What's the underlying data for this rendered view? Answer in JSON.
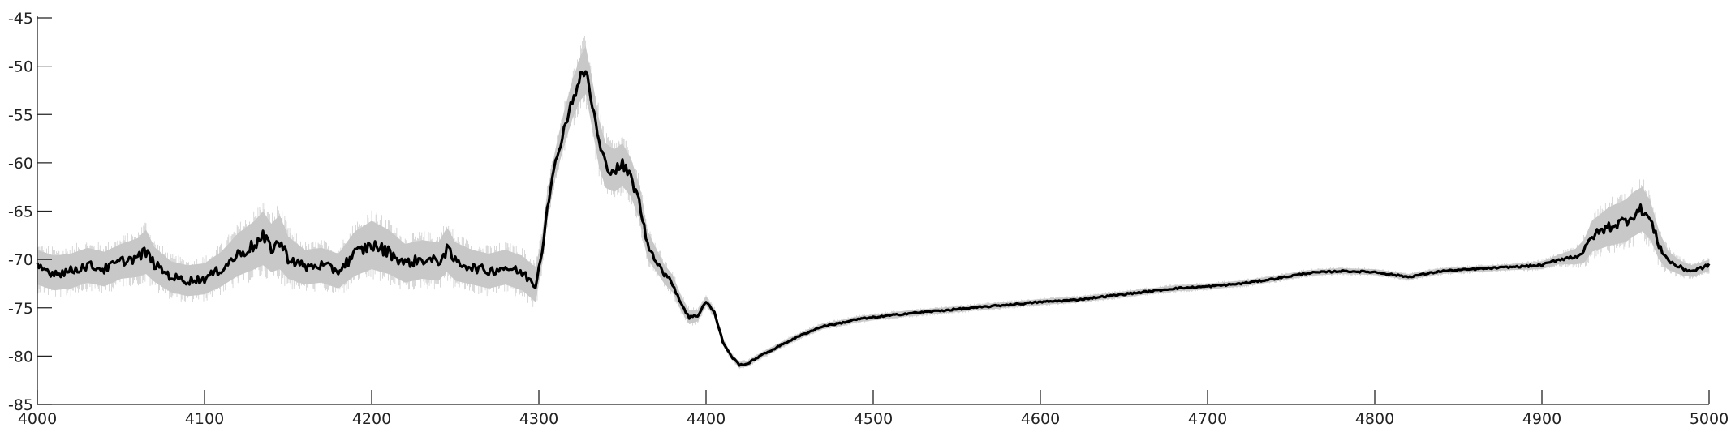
{
  "chart_data": {
    "type": "line",
    "title": "",
    "xlabel": "",
    "ylabel": "",
    "xlim": [
      4000,
      5000
    ],
    "ylim": [
      -85,
      -45
    ],
    "xticks": [
      4000,
      4100,
      4200,
      4300,
      4400,
      4500,
      4600,
      4700,
      4800,
      4900,
      5000
    ],
    "yticks": [
      -45,
      -50,
      -55,
      -60,
      -65,
      -70,
      -75,
      -80,
      -85
    ],
    "grid": false,
    "legend": "none",
    "colors": {
      "mean_line": "#000000",
      "spread_band": "#c8c8c8"
    },
    "series": [
      {
        "role": "mean",
        "x": [
          4000,
          4010,
          4020,
          4030,
          4040,
          4050,
          4060,
          4065,
          4070,
          4080,
          4090,
          4100,
          4110,
          4120,
          4130,
          4135,
          4140,
          4145,
          4150,
          4160,
          4170,
          4180,
          4190,
          4200,
          4210,
          4220,
          4230,
          4240,
          4245,
          4250,
          4260,
          4270,
          4280,
          4290,
          4298,
          4302,
          4305,
          4310,
          4315,
          4320,
          4325,
          4328,
          4332,
          4336,
          4340,
          4345,
          4350,
          4355,
          4360,
          4365,
          4370,
          4375,
          4380,
          4385,
          4390,
          4395,
          4400,
          4405,
          4410,
          4415,
          4420,
          4425,
          4430,
          4440,
          4450,
          4460,
          4470,
          4480,
          4490,
          4500,
          4520,
          4540,
          4560,
          4580,
          4600,
          4620,
          4640,
          4660,
          4680,
          4700,
          4720,
          4740,
          4760,
          4780,
          4800,
          4820,
          4840,
          4860,
          4880,
          4900,
          4910,
          4920,
          4925,
          4930,
          4940,
          4950,
          4955,
          4960,
          4965,
          4970,
          4975,
          4980,
          4985,
          4990,
          4995,
          5000
        ],
        "y": [
          -70.8,
          -71.4,
          -71.2,
          -70.6,
          -71.0,
          -70.2,
          -69.8,
          -69.2,
          -70.5,
          -71.8,
          -72.2,
          -72.0,
          -71.0,
          -69.5,
          -68.5,
          -67.8,
          -68.8,
          -68.2,
          -69.8,
          -70.8,
          -70.6,
          -71.2,
          -69.4,
          -68.5,
          -69.2,
          -70.4,
          -70.0,
          -70.2,
          -69.0,
          -70.2,
          -70.8,
          -71.2,
          -70.8,
          -71.4,
          -72.6,
          -69.0,
          -64.5,
          -60.0,
          -56.5,
          -53.5,
          -51.2,
          -50.4,
          -54.0,
          -58.0,
          -60.3,
          -60.8,
          -60.2,
          -61.5,
          -64.0,
          -68.5,
          -70.0,
          -71.5,
          -72.5,
          -74.5,
          -76.0,
          -75.8,
          -74.3,
          -75.5,
          -78.5,
          -80.0,
          -80.9,
          -80.8,
          -80.2,
          -79.3,
          -78.4,
          -77.6,
          -76.9,
          -76.6,
          -76.2,
          -76.0,
          -75.6,
          -75.3,
          -75.0,
          -74.7,
          -74.4,
          -74.2,
          -73.8,
          -73.4,
          -73.0,
          -72.8,
          -72.5,
          -72.0,
          -71.4,
          -71.2,
          -71.3,
          -71.8,
          -71.2,
          -71.0,
          -70.8,
          -70.6,
          -70.0,
          -69.7,
          -69.2,
          -67.6,
          -66.6,
          -66.0,
          -65.3,
          -64.8,
          -66.0,
          -68.5,
          -70.0,
          -70.6,
          -71.0,
          -71.2,
          -70.9,
          -70.6
        ]
      },
      {
        "role": "spread",
        "half_width": [
          1.8,
          1.8,
          1.8,
          1.8,
          1.8,
          1.8,
          2.0,
          2.3,
          1.8,
          1.6,
          1.6,
          1.6,
          1.8,
          2.2,
          2.5,
          2.8,
          2.5,
          2.8,
          2.2,
          1.8,
          1.8,
          1.8,
          2.3,
          2.5,
          2.3,
          2.0,
          2.0,
          2.0,
          2.3,
          2.0,
          1.8,
          1.8,
          1.8,
          1.8,
          1.8,
          1.5,
          1.5,
          1.5,
          1.8,
          2.0,
          2.3,
          2.5,
          2.5,
          2.5,
          2.3,
          2.2,
          2.2,
          2.0,
          1.8,
          1.5,
          1.2,
          1.0,
          0.9,
          0.8,
          0.7,
          0.6,
          0.5,
          0.4,
          0.35,
          0.3,
          0.3,
          0.3,
          0.3,
          0.3,
          0.3,
          0.3,
          0.3,
          0.3,
          0.3,
          0.3,
          0.3,
          0.3,
          0.3,
          0.3,
          0.3,
          0.3,
          0.3,
          0.3,
          0.3,
          0.3,
          0.3,
          0.3,
          0.3,
          0.3,
          0.3,
          0.3,
          0.3,
          0.3,
          0.3,
          0.4,
          0.5,
          0.8,
          1.2,
          1.6,
          2.0,
          2.2,
          2.3,
          2.3,
          2.0,
          1.5,
          1.0,
          0.8,
          0.7,
          0.6,
          0.6,
          0.6
        ]
      }
    ]
  }
}
